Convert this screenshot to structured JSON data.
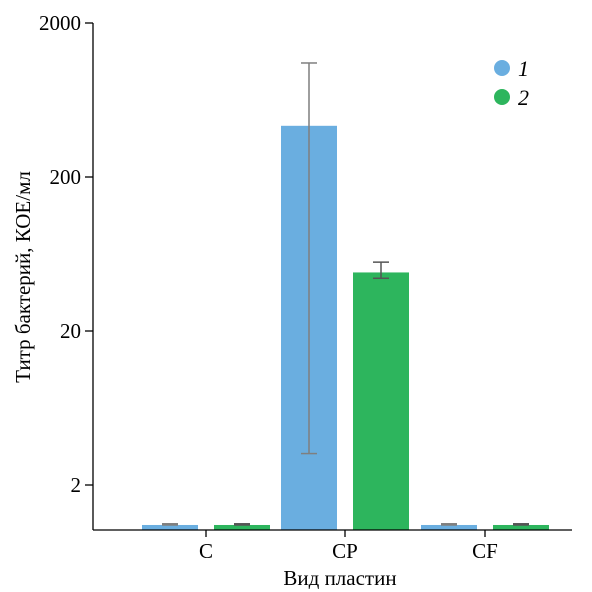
{
  "chart_data": {
    "type": "bar",
    "xlabel": "Вид пластин",
    "ylabel": "Титр бактерий, КОЕ/мл",
    "yscale": "log",
    "ylim": [
      1.0,
      2000
    ],
    "yticks": [
      2,
      20,
      200,
      2000
    ],
    "ytick_labels": [
      "2",
      "20",
      "200",
      "2000"
    ],
    "categories": [
      "C",
      "CP",
      "CF"
    ],
    "legend_position": "top-right",
    "series": [
      {
        "name": "1",
        "color": "#6aaee0",
        "values": [
          1.1,
          430,
          1.1
        ],
        "error_low": [
          1.1,
          3.2,
          1.1
        ],
        "error_high": [
          1.12,
          1100,
          1.12
        ]
      },
      {
        "name": "2",
        "color": "#2db55d",
        "values": [
          1.1,
          48,
          1.1
        ],
        "error_low": [
          1.1,
          44,
          1.1
        ],
        "error_high": [
          1.12,
          56,
          1.12
        ]
      }
    ]
  }
}
